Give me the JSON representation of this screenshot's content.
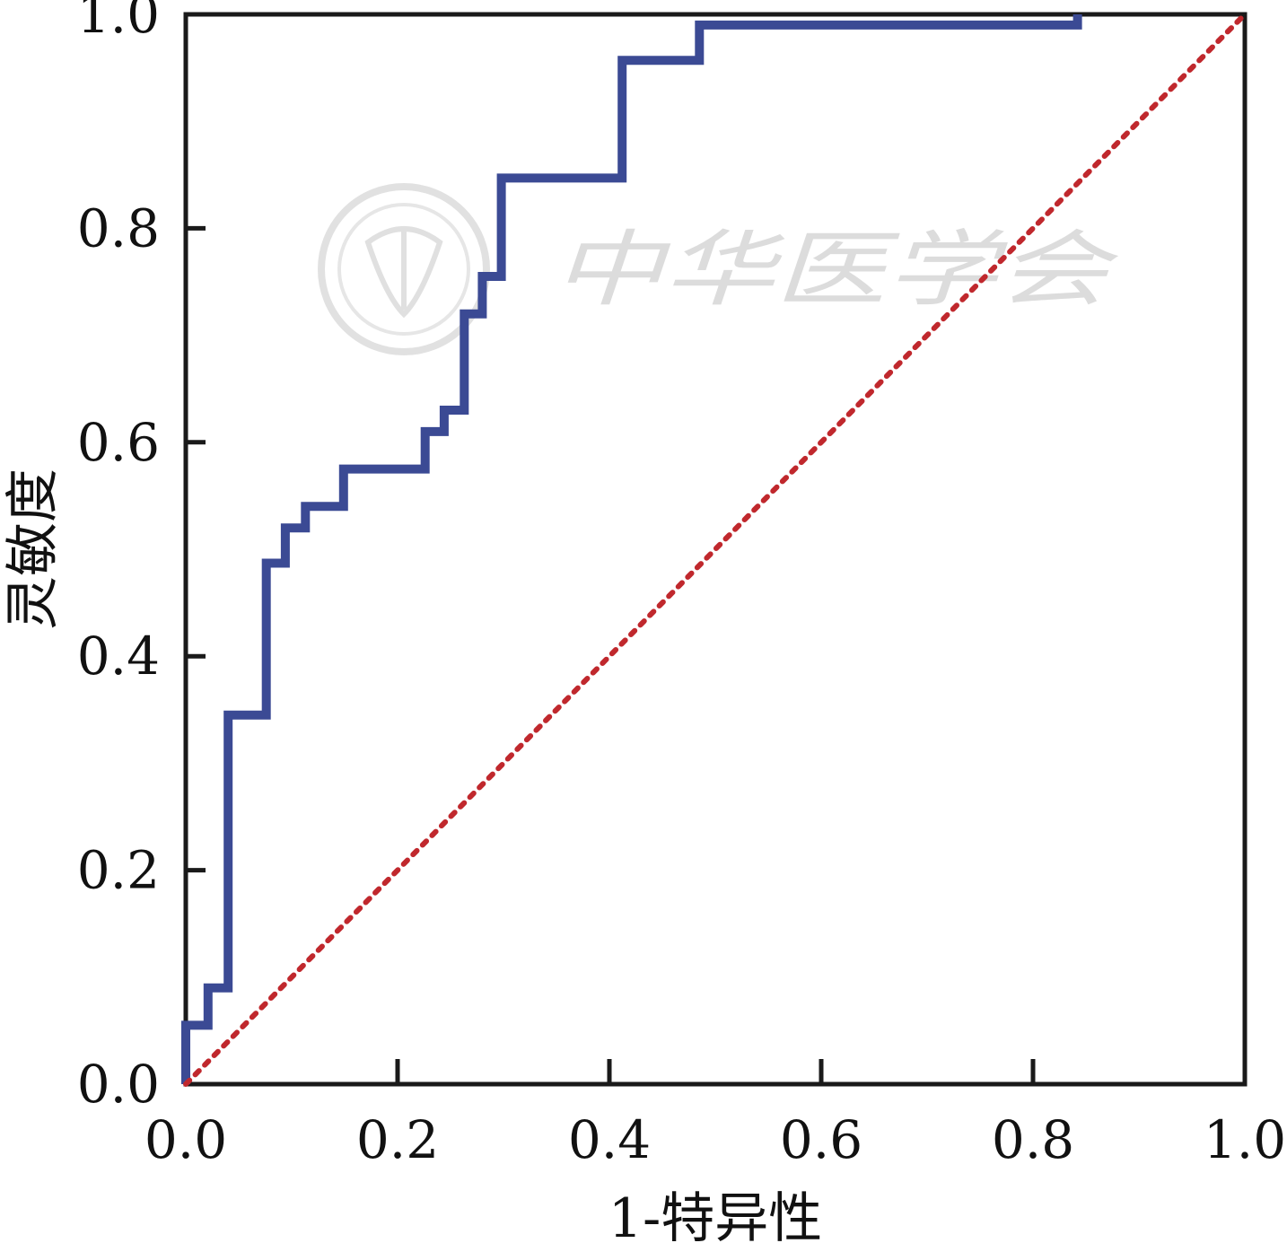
{
  "chart_data": {
    "type": "line",
    "title": "",
    "xlabel": "1-特异性",
    "ylabel": "灵敏度",
    "xlim": [
      0,
      1
    ],
    "ylim": [
      0,
      1
    ],
    "x_ticks": [
      0.0,
      0.2,
      0.4,
      0.6,
      0.8,
      1.0
    ],
    "y_ticks": [
      0.0,
      0.2,
      0.4,
      0.6,
      0.8,
      1.0
    ],
    "x_tick_labels": [
      "0.0",
      "0.2",
      "0.4",
      "0.6",
      "0.8",
      "1.0"
    ],
    "y_tick_labels": [
      "0.0",
      "0.2",
      "0.4",
      "0.6",
      "0.8",
      "1.0"
    ],
    "grid": false,
    "series": [
      {
        "style": "solid",
        "color": "#3b4a94",
        "step": true,
        "points": [
          [
            0.0,
            0.0
          ],
          [
            0.0,
            0.055
          ],
          [
            0.021,
            0.055
          ],
          [
            0.021,
            0.09
          ],
          [
            0.04,
            0.09
          ],
          [
            0.04,
            0.345
          ],
          [
            0.076,
            0.345
          ],
          [
            0.076,
            0.487
          ],
          [
            0.094,
            0.487
          ],
          [
            0.094,
            0.52
          ],
          [
            0.113,
            0.52
          ],
          [
            0.113,
            0.54
          ],
          [
            0.149,
            0.54
          ],
          [
            0.149,
            0.575
          ],
          [
            0.226,
            0.575
          ],
          [
            0.226,
            0.61
          ],
          [
            0.244,
            0.61
          ],
          [
            0.244,
            0.63
          ],
          [
            0.263,
            0.63
          ],
          [
            0.263,
            0.72
          ],
          [
            0.28,
            0.72
          ],
          [
            0.28,
            0.755
          ],
          [
            0.298,
            0.755
          ],
          [
            0.298,
            0.847
          ],
          [
            0.412,
            0.847
          ],
          [
            0.412,
            0.957
          ],
          [
            0.485,
            0.957
          ],
          [
            0.485,
            0.99
          ],
          [
            0.842,
            0.99
          ],
          [
            0.842,
            1.0
          ]
        ]
      },
      {
        "style": "dotted",
        "color": "#c0282d",
        "step": false,
        "points": [
          [
            0.0,
            0.0
          ],
          [
            1.0,
            1.0
          ]
        ]
      }
    ],
    "watermark": {
      "text": "中华医学会"
    }
  }
}
